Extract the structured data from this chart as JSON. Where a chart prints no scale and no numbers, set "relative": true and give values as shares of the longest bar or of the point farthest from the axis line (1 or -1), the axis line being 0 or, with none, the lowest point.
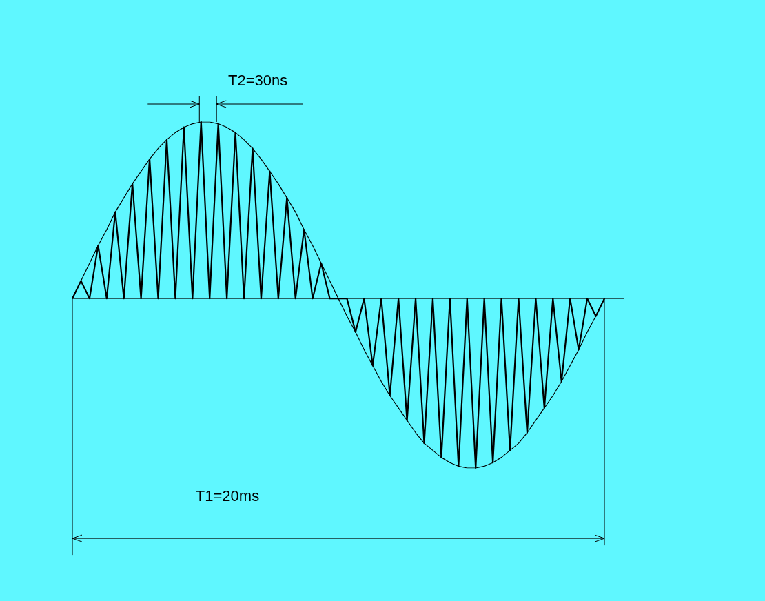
{
  "chart_data": {
    "type": "line",
    "relative": true,
    "legend": false,
    "marker": "none",
    "line_style": "solid",
    "categories": [
      null,
      null,
      null,
      null,
      null,
      null,
      null,
      null,
      null,
      null,
      null,
      null,
      null,
      null,
      null,
      null,
      null,
      null,
      null,
      null,
      null,
      null,
      null,
      null,
      null,
      null,
      null,
      null,
      null,
      null,
      null,
      null,
      null,
      null,
      null,
      null,
      null,
      null,
      null,
      null,
      null,
      null,
      null,
      null,
      null,
      null,
      null,
      null,
      null,
      null,
      null,
      null,
      null,
      null,
      null,
      null,
      null,
      null,
      null,
      null,
      null,
      null,
      null
    ],
    "series": [
      {
        "color": "#000000",
        "values": [
          0,
          0.1,
          0.2,
          0.3,
          0.39,
          0.49,
          0.57,
          0.65,
          0.72,
          0.79,
          0.85,
          0.9,
          0.94,
          0.97,
          0.99,
          1,
          1,
          0.99,
          0.97,
          0.94,
          0.9,
          0.85,
          0.79,
          0.72,
          0.65,
          0.57,
          0.49,
          0.39,
          0.3,
          0.2,
          0.1,
          0,
          -0.1,
          -0.19,
          -0.29,
          -0.38,
          -0.47,
          -0.55,
          -0.62,
          -0.69,
          -0.76,
          -0.82,
          -0.86,
          -0.9,
          -0.93,
          -0.95,
          -0.96,
          -0.96,
          -0.95,
          -0.93,
          -0.9,
          -0.86,
          -0.82,
          -0.76,
          -0.69,
          -0.62,
          -0.55,
          -0.47,
          -0.38,
          -0.29,
          -0.19,
          -0.1,
          0
        ]
      },
      {
        "color": "#000000",
        "values": [
          0,
          0.1,
          0,
          0.3,
          0,
          0.49,
          0,
          0.65,
          0,
          0.79,
          0,
          0.9,
          0,
          0.97,
          0,
          1,
          0,
          0.99,
          0,
          0.94,
          0,
          0.85,
          0,
          0.72,
          0,
          0.57,
          0,
          0.39,
          0,
          0.2,
          0,
          0,
          0,
          -0.19,
          0,
          -0.38,
          0,
          -0.55,
          0,
          -0.69,
          0,
          -0.82,
          0,
          -0.9,
          0,
          -0.95,
          0,
          -0.96,
          0,
          -0.93,
          0,
          -0.86,
          0,
          -0.76,
          0,
          -0.62,
          0,
          -0.47,
          0,
          -0.29,
          0,
          -0.1,
          0
        ]
      }
    ],
    "annotations": [
      "T2=30ns",
      "T1=20ms"
    ]
  }
}
